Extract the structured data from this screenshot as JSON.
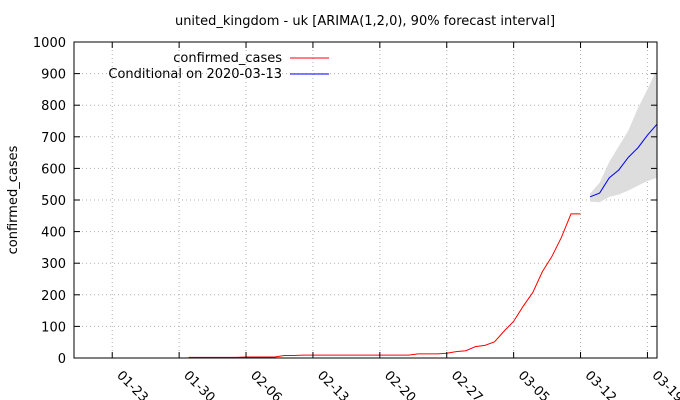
{
  "chart_data": {
    "type": "line",
    "title": "united_kingdom - uk [ARIMA(1,2,0), 90% forecast interval]",
    "ylabel": "confirmed_cases",
    "xlabel": "",
    "x_axis": {
      "type": "date",
      "range": [
        "2020-01-19",
        "2020-03-20"
      ],
      "ticks": [
        {
          "date": "2020-01-23",
          "label": "01-23"
        },
        {
          "date": "2020-01-30",
          "label": "01-30"
        },
        {
          "date": "2020-02-06",
          "label": "02-06"
        },
        {
          "date": "2020-02-13",
          "label": "02-13"
        },
        {
          "date": "2020-02-20",
          "label": "02-20"
        },
        {
          "date": "2020-02-27",
          "label": "02-27"
        },
        {
          "date": "2020-03-05",
          "label": "03-05"
        },
        {
          "date": "2020-03-12",
          "label": "03-12"
        },
        {
          "date": "2020-03-19",
          "label": "03-19"
        }
      ]
    },
    "y_axis": {
      "range": [
        0,
        1000
      ],
      "ticks": [
        0,
        100,
        200,
        300,
        400,
        500,
        600,
        700,
        800,
        900,
        1000
      ]
    },
    "grid": true,
    "legend": "top-left",
    "series": [
      {
        "name": "confirmed_cases",
        "color": "#ff0000",
        "points": [
          [
            "2020-01-31",
            2
          ],
          [
            "2020-02-01",
            2
          ],
          [
            "2020-02-02",
            2
          ],
          [
            "2020-02-03",
            2
          ],
          [
            "2020-02-04",
            2
          ],
          [
            "2020-02-05",
            2
          ],
          [
            "2020-02-06",
            3
          ],
          [
            "2020-02-07",
            3
          ],
          [
            "2020-02-08",
            3
          ],
          [
            "2020-02-09",
            3
          ],
          [
            "2020-02-10",
            8
          ],
          [
            "2020-02-11",
            8
          ],
          [
            "2020-02-12",
            9
          ],
          [
            "2020-02-13",
            9
          ],
          [
            "2020-02-14",
            9
          ],
          [
            "2020-02-15",
            9
          ],
          [
            "2020-02-16",
            9
          ],
          [
            "2020-02-17",
            9
          ],
          [
            "2020-02-18",
            9
          ],
          [
            "2020-02-19",
            9
          ],
          [
            "2020-02-20",
            9
          ],
          [
            "2020-02-21",
            9
          ],
          [
            "2020-02-22",
            9
          ],
          [
            "2020-02-23",
            9
          ],
          [
            "2020-02-24",
            13
          ],
          [
            "2020-02-25",
            13
          ],
          [
            "2020-02-26",
            13
          ],
          [
            "2020-02-27",
            15
          ],
          [
            "2020-02-28",
            20
          ],
          [
            "2020-02-29",
            23
          ],
          [
            "2020-03-01",
            36
          ],
          [
            "2020-03-02",
            40
          ],
          [
            "2020-03-03",
            51
          ],
          [
            "2020-03-04",
            85
          ],
          [
            "2020-03-05",
            116
          ],
          [
            "2020-03-06",
            164
          ],
          [
            "2020-03-07",
            207
          ],
          [
            "2020-03-08",
            273
          ],
          [
            "2020-03-09",
            321
          ],
          [
            "2020-03-10",
            382
          ],
          [
            "2020-03-11",
            456
          ],
          [
            "2020-03-12",
            456
          ]
        ]
      },
      {
        "name": "Conditional on 2020-03-13",
        "color": "#0000ff",
        "points": [
          [
            "2020-03-13",
            510
          ],
          [
            "2020-03-14",
            522
          ],
          [
            "2020-03-15",
            570
          ],
          [
            "2020-03-16",
            595
          ],
          [
            "2020-03-17",
            635
          ],
          [
            "2020-03-18",
            665
          ],
          [
            "2020-03-19",
            705
          ],
          [
            "2020-03-20",
            740
          ]
        ]
      }
    ],
    "forecast_interval": {
      "color": "#dddddd",
      "lower": [
        [
          "2020-03-13",
          495
        ],
        [
          "2020-03-14",
          493
        ],
        [
          "2020-03-15",
          510
        ],
        [
          "2020-03-16",
          517
        ],
        [
          "2020-03-17",
          530
        ],
        [
          "2020-03-18",
          545
        ],
        [
          "2020-03-19",
          560
        ],
        [
          "2020-03-20",
          570
        ]
      ],
      "upper": [
        [
          "2020-03-13",
          520
        ],
        [
          "2020-03-14",
          555
        ],
        [
          "2020-03-15",
          620
        ],
        [
          "2020-03-16",
          670
        ],
        [
          "2020-03-17",
          720
        ],
        [
          "2020-03-18",
          790
        ],
        [
          "2020-03-19",
          850
        ],
        [
          "2020-03-20",
          915
        ]
      ]
    }
  }
}
